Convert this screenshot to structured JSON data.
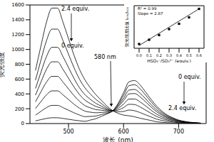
{
  "chart_data": [
    {
      "type": "line",
      "x_label": "波长 (nm)",
      "y_label": "荧光强度",
      "x": [
        440,
        450,
        460,
        470,
        480,
        490,
        500,
        510,
        520,
        530,
        540,
        550,
        560,
        570,
        580,
        590,
        600,
        610,
        620,
        630,
        640,
        650,
        660,
        670,
        680,
        690,
        700,
        710,
        720,
        730,
        740
      ],
      "xlim": [
        430,
        750
      ],
      "xticks": [
        500,
        600,
        700
      ],
      "ylim": [
        0,
        1600
      ],
      "yticks": [
        0,
        200,
        400,
        600,
        800,
        1000,
        1200,
        1400,
        1600
      ],
      "series": [
        {
          "color": "#000000",
          "values": [
            36,
            53,
            69,
            78,
            78,
            69,
            58,
            46,
            37,
            30,
            48,
            66,
            98,
            129,
            170,
            271,
            417,
            563,
            580,
            520,
            425,
            325,
            236,
            165,
            112,
            77,
            47,
            30,
            18,
            12,
            6
          ]
        },
        {
          "color": "#000000",
          "values": [
            113,
            165,
            215,
            245,
            245,
            215,
            180,
            145,
            115,
            93,
            96,
            102,
            122,
            141,
            171,
            256,
            382,
            511,
            524,
            469,
            384,
            293,
            212,
            148,
            101,
            69,
            42,
            27,
            16,
            11,
            5
          ]
        },
        {
          "color": "#000000",
          "values": [
            203,
            297,
            387,
            441,
            441,
            387,
            324,
            261,
            207,
            167,
            153,
            145,
            150,
            155,
            172,
            239,
            342,
            451,
            460,
            410,
            335,
            255,
            184,
            129,
            87,
            60,
            37,
            23,
            14,
            9,
            5
          ]
        },
        {
          "color": "#000000",
          "values": [
            293,
            429,
            559,
            637,
            637,
            559,
            468,
            377,
            299,
            241,
            211,
            188,
            180,
            171,
            175,
            226,
            309,
            400,
            405,
            360,
            293,
            223,
            160,
            112,
            76,
            52,
            32,
            20,
            12,
            8,
            4
          ]
        },
        {
          "color": "#000000",
          "values": [
            383,
            561,
            731,
            833,
            833,
            731,
            612,
            493,
            391,
            315,
            268,
            230,
            207,
            183,
            173,
            204,
            262,
            330,
            331,
            292,
            237,
            180,
            128,
            90,
            61,
            42,
            26,
            16,
            10,
            6,
            3
          ]
        },
        {
          "color": "#000000",
          "values": [
            473,
            693,
            903,
            1029,
            1029,
            903,
            756,
            609,
            483,
            389,
            325,
            271,
            234,
            195,
            171,
            182,
            215,
            260,
            256,
            224,
            181,
            137,
            96,
            67,
            46,
            31,
            19,
            12,
            7,
            5,
            2
          ]
        },
        {
          "color": "#000000",
          "values": [
            585,
            858,
            1118,
            1274,
            1274,
            1118,
            936,
            754,
            598,
            481,
            396,
            324,
            268,
            212,
            171,
            159,
            164,
            182,
            173,
            148,
            118,
            89,
            60,
            42,
            29,
            20,
            12,
            8,
            5,
            3,
            2
          ]
        },
        {
          "color": "#000000",
          "values": [
            716,
            1049,
            1367,
            1558,
            1558,
            1367,
            1145,
            922,
            731,
            588,
            479,
            387,
            310,
            235,
            176,
            138,
            114,
            105,
            91,
            72,
            56,
            41,
            24,
            17,
            11,
            8,
            5,
            3,
            2,
            1,
            1
          ]
        }
      ],
      "annotations": [
        "2.4 equiv.",
        "0 equiv.",
        "580 nm",
        "0 equiv.",
        "2.4 equiv."
      ]
    },
    {
      "type": "scatter",
      "x_label": "HSO₃⁻/SO₃²⁻ (equiv.)",
      "y_label": "荧光强度比值 I₄₇₅/I₆₁₅",
      "xlim": [
        -0.05,
        0.65
      ],
      "xticks": [
        {
          "value": 0,
          "label": "0.0"
        },
        {
          "value": 0.1,
          "label": "0.1"
        },
        {
          "value": 0.2,
          "label": "0.2"
        },
        {
          "value": 0.3,
          "label": "0.3"
        },
        {
          "value": 0.4,
          "label": "0.4"
        },
        {
          "value": 0.5,
          "label": "0.5"
        },
        {
          "value": 0.6,
          "label": "0.6"
        }
      ],
      "ylim": [
        0,
        2
      ],
      "tick_labels": "x",
      "series": [
        {
          "type": "scatter",
          "marker": "square",
          "color": "#000000",
          "x": [
            0,
            0.1,
            0.2,
            0.3,
            0.4,
            0.5,
            0.6
          ],
          "values": [
            0.2,
            0.4,
            0.62,
            0.9,
            1.15,
            1.45,
            1.85
          ]
        },
        {
          "type": "line",
          "color": "#000000",
          "x": [
            0,
            0.6
          ],
          "values": [
            0.13,
            1.85
          ]
        }
      ],
      "annotations": [
        "R² = 0.99",
        "Slope = 2.87"
      ]
    }
  ]
}
